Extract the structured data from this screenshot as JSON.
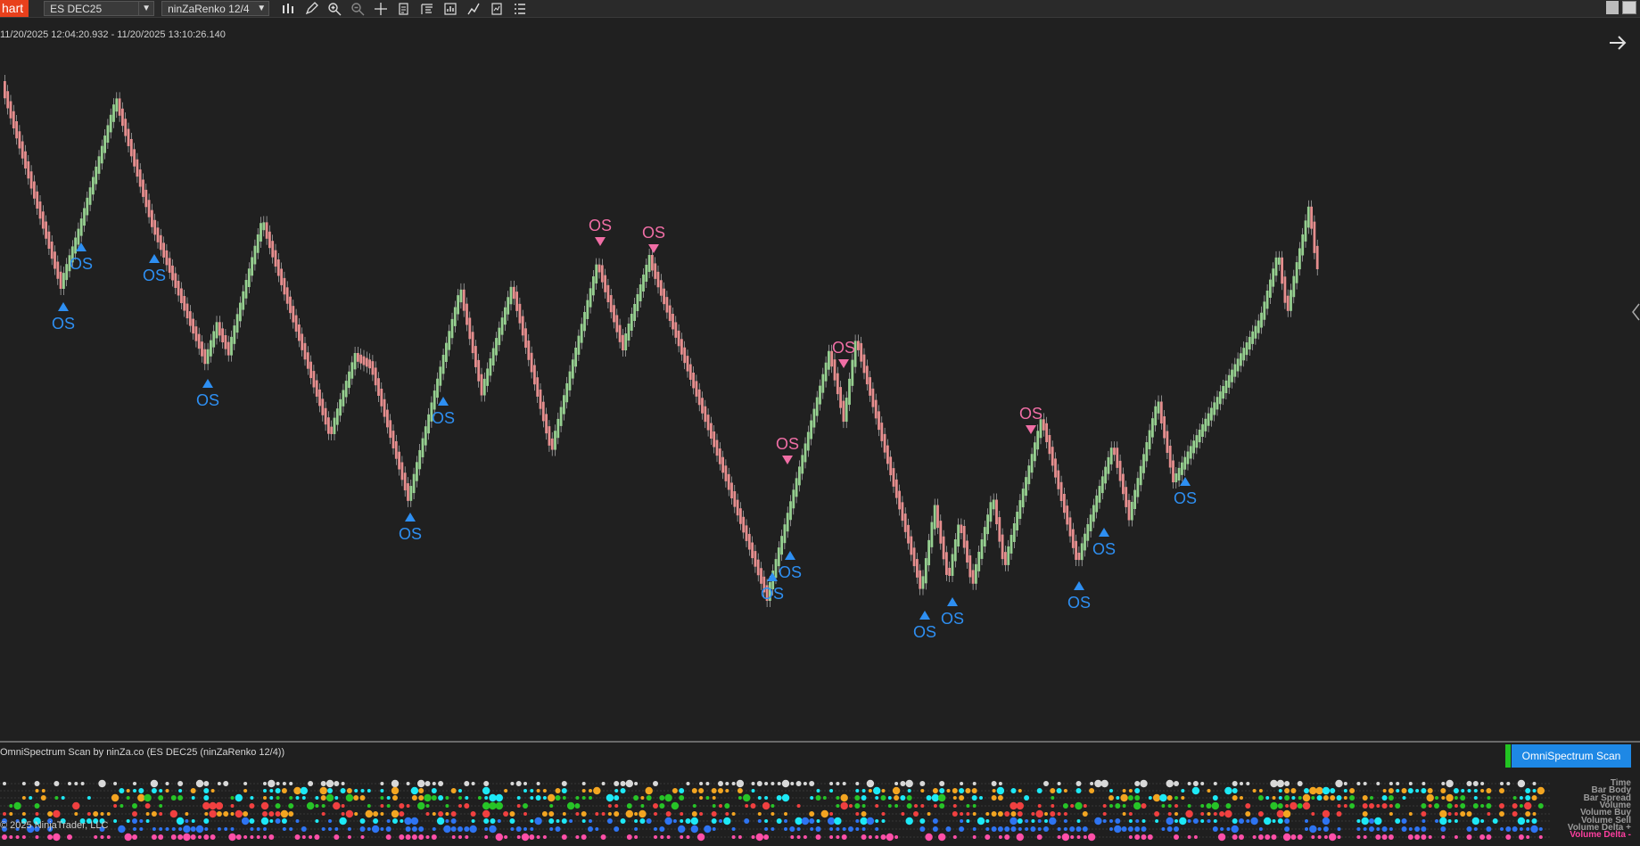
{
  "toolbar": {
    "chart_tab": "hart",
    "instrument": "ES DEC25",
    "bar_type": "ninZaRenko 12/4",
    "icons": [
      "bars-icon",
      "pencil-icon",
      "zoom-in-icon",
      "zoom-out-icon",
      "crosshair-icon",
      "properties-icon",
      "templates-icon",
      "strategies-icon",
      "indicators-icon",
      "data-box-icon",
      "list-icon"
    ]
  },
  "chart": {
    "time_range": "11/20/2025 12:04:20.932 - 11/20/2025 13:10:26.140",
    "marker_label": "OS",
    "colors": {
      "background": "#202020",
      "up_bar": "#96cf90",
      "down_bar": "#e58e8e",
      "buy_signal": "#2e8ff2",
      "sell_signal": "#f06ea5"
    }
  },
  "scan_panel": {
    "title": "OmniSpectrum Scan by ninZa.co (ES DEC25 (ninZaRenko 12/4))",
    "button_label": "OmniSpectrum Scan",
    "row_labels": [
      "Time",
      "Bar Body",
      "Bar Spread",
      "Volume",
      "Volume Buy",
      "Volume Sell",
      "Volume Delta +",
      "Volume Delta -"
    ],
    "row_colors": [
      "#9a9a9a",
      "#9a9a9a",
      "#9a9a9a",
      "#9a9a9a",
      "#9a9a9a",
      "#9a9a9a",
      "#9a9a9a",
      "#ff3fa0"
    ],
    "dot_colors": [
      "#d8d8d8",
      "#1de9f6",
      "#f3a521",
      "#27c427",
      "#f04040",
      "#2e74f2",
      "#ff4fa8"
    ]
  },
  "copyright": "© 2025 NinjaTrader, LLC"
}
